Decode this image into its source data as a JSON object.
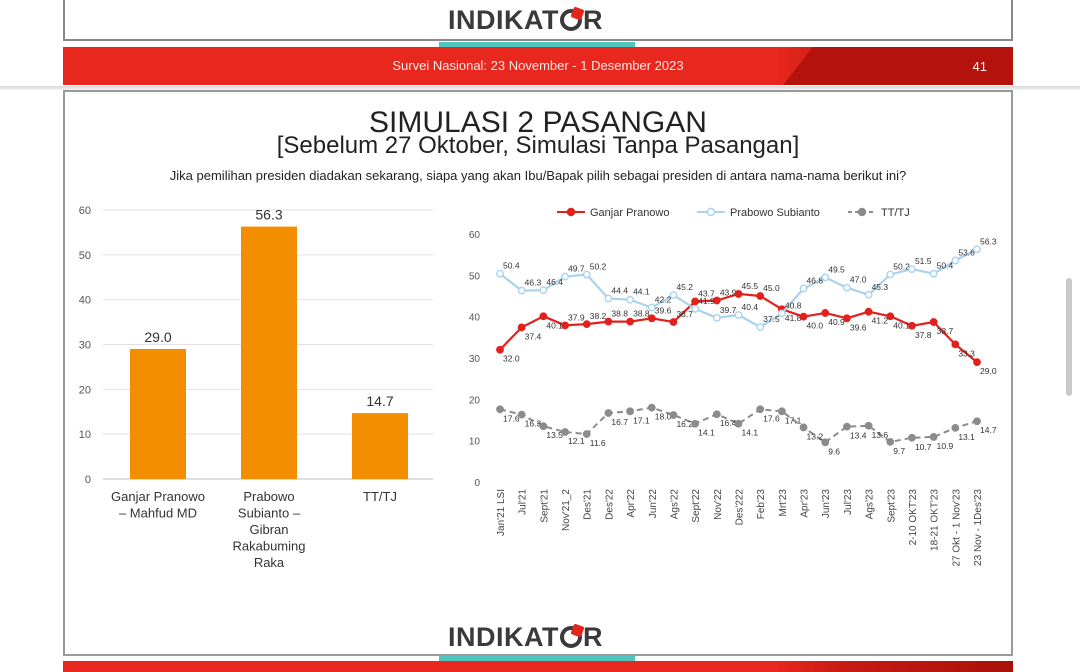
{
  "header": {
    "logo_text": "INDIKATOR",
    "survey_text": "Survei Nasional: 23 November - 1 Desember 2023",
    "page_number": "41"
  },
  "slide": {
    "title": "SIMULASI 2 PASANGAN",
    "subtitle": "[Sebelum 27 Oktober, Simulasi Tanpa Pasangan]",
    "question": "Jika pemilihan presiden diadakan sekarang, siapa yang akan Ibu/Bapak pilih sebagai presiden di antara nama-nama berikut ini?"
  },
  "colors": {
    "accent": "#e8271f",
    "teal": "#4fc5c0",
    "bar": "#f28e00",
    "ganjar": "#e2201c",
    "prabowo": "#a9d3ef",
    "tt": "#8c8c8c"
  },
  "chart_data": [
    {
      "type": "bar",
      "categories": [
        [
          "Ganjar Pranowo",
          "– Mahfud MD"
        ],
        [
          "Prabowo",
          "Subianto –",
          "Gibran",
          "Rakabuming",
          "Raka"
        ],
        [
          "TT/TJ"
        ]
      ],
      "values": [
        29.0,
        56.3,
        14.7
      ],
      "value_labels": [
        "29.0",
        "56.3",
        "14.7"
      ],
      "ylim": [
        0,
        60
      ],
      "yticks": [
        0,
        10,
        20,
        30,
        40,
        50,
        60
      ],
      "grid": true
    },
    {
      "type": "line",
      "x": [
        "Jan'21 LSI",
        "Jul'21",
        "Sept'21",
        "Nov'21_2",
        "Des'21",
        "Des'22",
        "Apr'22",
        "Jun'22",
        "Ags'22",
        "Sept'22",
        "Nov'22",
        "Des'222",
        "Feb'23",
        "Mrt'23",
        "Apr'23",
        "Jun'23",
        "Jul'23",
        "Ags'23",
        "Sept'23",
        "2-10 OKT'23",
        "18-21 OKT'23",
        "27 Okt - 1 Nov'23",
        "23 Nov - 1Des'23"
      ],
      "series": [
        {
          "name": "Ganjar Pranowo",
          "values": [
            32.0,
            37.4,
            40.1,
            37.9,
            38.2,
            38.8,
            38.8,
            39.6,
            38.7,
            43.7,
            43.9,
            45.5,
            45.0,
            41.8,
            40.0,
            40.9,
            39.6,
            41.2,
            40.1,
            37.8,
            38.7,
            33.3,
            29.0
          ]
        },
        {
          "name": "Prabowo Subianto",
          "values": [
            50.4,
            46.3,
            46.4,
            49.7,
            50.2,
            44.4,
            44.1,
            42.2,
            45.2,
            41.9,
            39.7,
            40.4,
            37.5,
            40.8,
            46.8,
            49.5,
            47.0,
            45.3,
            50.2,
            51.5,
            50.4,
            53.6,
            56.3
          ]
        },
        {
          "name": "TT/TJ",
          "values": [
            17.6,
            16.3,
            13.5,
            12.1,
            11.6,
            16.7,
            17.1,
            18.0,
            16.2,
            14.1,
            16.4,
            14.1,
            17.6,
            17.1,
            13.2,
            9.6,
            13.4,
            13.6,
            9.7,
            10.7,
            10.9,
            13.1,
            14.7
          ]
        }
      ],
      "ylim": [
        0,
        60
      ],
      "yticks": [
        0,
        10,
        20,
        30,
        40,
        50,
        60
      ],
      "legend": "top",
      "grid": false
    }
  ]
}
